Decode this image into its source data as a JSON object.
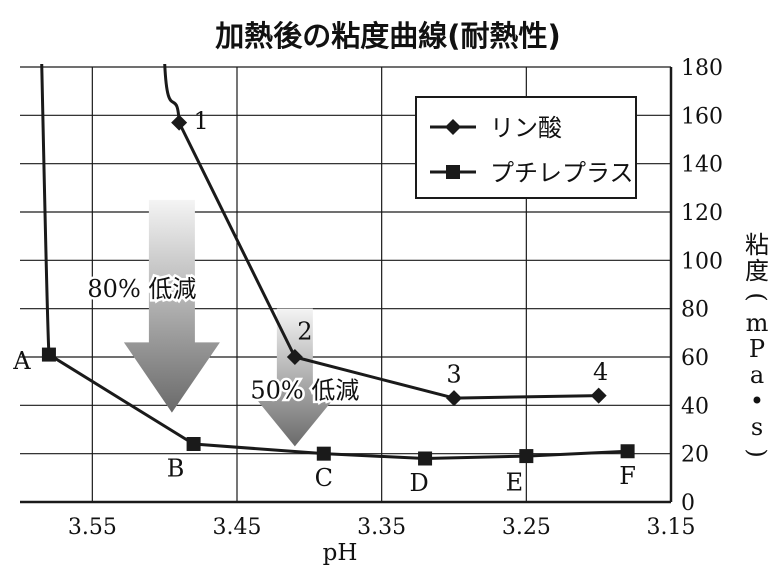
{
  "chart_data": {
    "type": "line",
    "title": "加熱後の粘度曲線(耐熱性)",
    "xlabel": "pH",
    "ylabel_chars": [
      "粘",
      "度",
      "(",
      "m",
      "P",
      "a",
      "•",
      "s",
      ")"
    ],
    "x_axis": {
      "reversed": true,
      "min": 3.15,
      "max": 3.6,
      "ticks": [
        3.55,
        3.45,
        3.35,
        3.25,
        3.15
      ]
    },
    "y_axis": {
      "position": "right",
      "min": 0,
      "max": 180,
      "ticks": [
        0,
        20,
        40,
        60,
        80,
        100,
        120,
        140,
        160,
        180
      ]
    },
    "grid": true,
    "legend": "top-right",
    "series": [
      {
        "name": "リン酸",
        "marker": "diamond",
        "curve_above_axis_x": 3.5,
        "points": [
          {
            "x": 3.49,
            "y": 157,
            "label": "1"
          },
          {
            "x": 3.41,
            "y": 60,
            "label": "2"
          },
          {
            "x": 3.3,
            "y": 43,
            "label": "3"
          },
          {
            "x": 3.2,
            "y": 44,
            "label": "4"
          }
        ]
      },
      {
        "name": "プチレプラス",
        "marker": "square",
        "curve_above_axis_x": 3.585,
        "points": [
          {
            "x": 3.58,
            "y": 61,
            "label": "A"
          },
          {
            "x": 3.48,
            "y": 24,
            "label": "B"
          },
          {
            "x": 3.39,
            "y": 20,
            "label": "C"
          },
          {
            "x": 3.32,
            "y": 18,
            "label": "D"
          },
          {
            "x": 3.25,
            "y": 19,
            "label": "E"
          },
          {
            "x": 3.18,
            "y": 21,
            "label": "F"
          }
        ]
      }
    ],
    "annotations": [
      {
        "text": "80% 低減",
        "arrow_x": 3.495,
        "arrow_from_y": 125,
        "arrow_to_y": 37
      },
      {
        "text": "50% 低減",
        "arrow_x": 3.41,
        "arrow_from_y": 80,
        "arrow_to_y": 23
      }
    ],
    "colors": {
      "line": "#1a1a1a",
      "grid": "#1a1a1a",
      "arrow_dark": "#6a6a6a",
      "arrow_light": "#f4f4f4"
    }
  }
}
